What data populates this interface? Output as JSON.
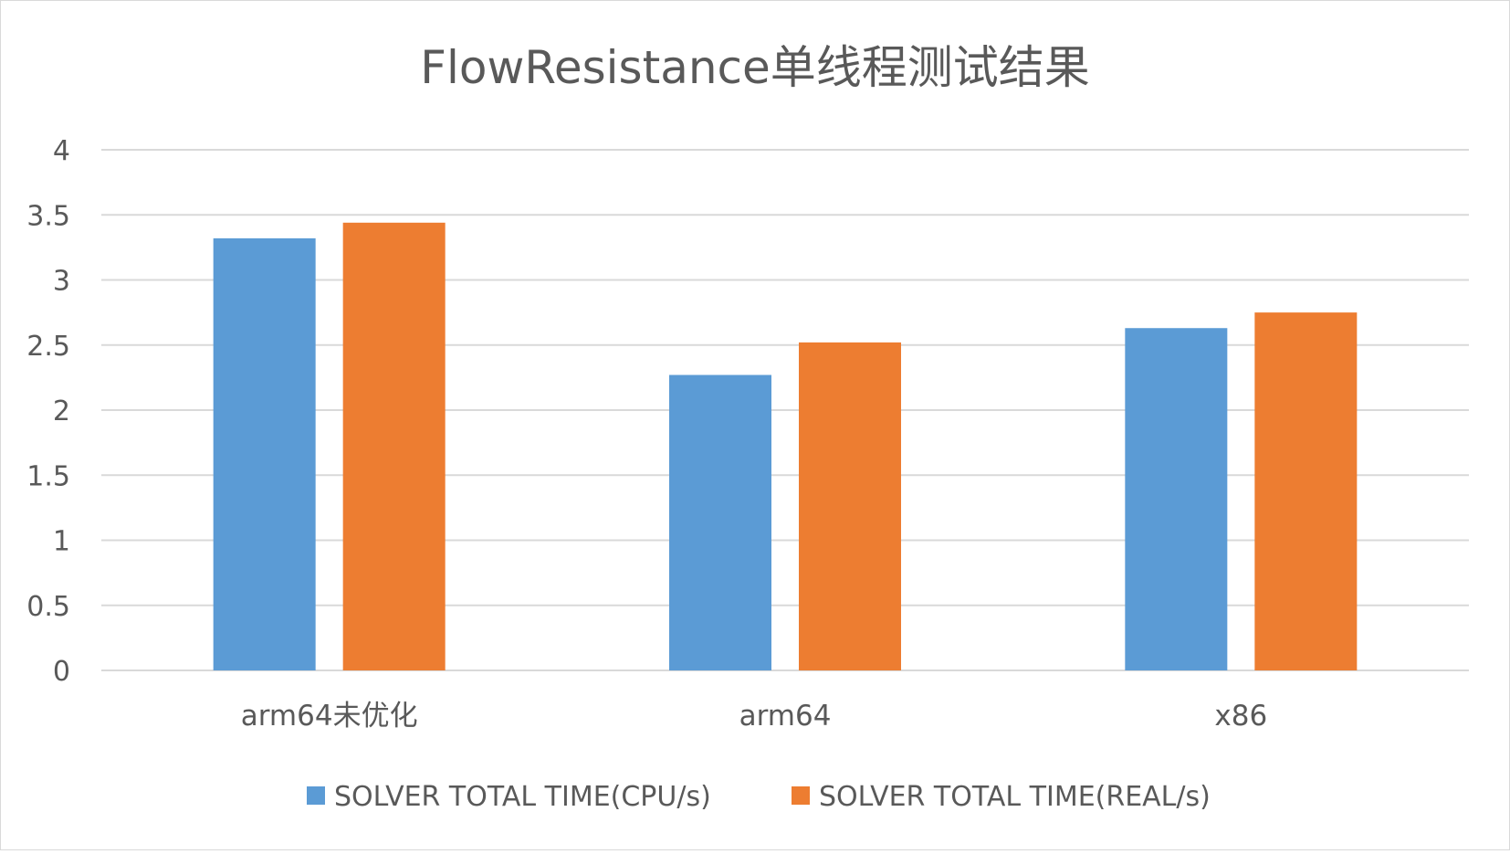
{
  "chart_data": {
    "type": "bar",
    "title": "FlowResistance单线程测试结果",
    "categories": [
      "arm64未优化",
      "arm64",
      "x86"
    ],
    "series": [
      {
        "name": "SOLVER TOTAL TIME(CPU/s)",
        "color": "#5b9bd5",
        "values": [
          3.32,
          2.27,
          2.63
        ]
      },
      {
        "name": "SOLVER TOTAL TIME(REAL/s)",
        "color": "#ed7d31",
        "values": [
          3.44,
          2.52,
          2.75
        ]
      }
    ],
    "ylim": [
      0,
      4
    ],
    "yticks": [
      "0",
      "0.5",
      "1",
      "1.5",
      "2",
      "2.5",
      "3",
      "3.5",
      "4"
    ],
    "grid": true,
    "legend_position": "bottom"
  }
}
